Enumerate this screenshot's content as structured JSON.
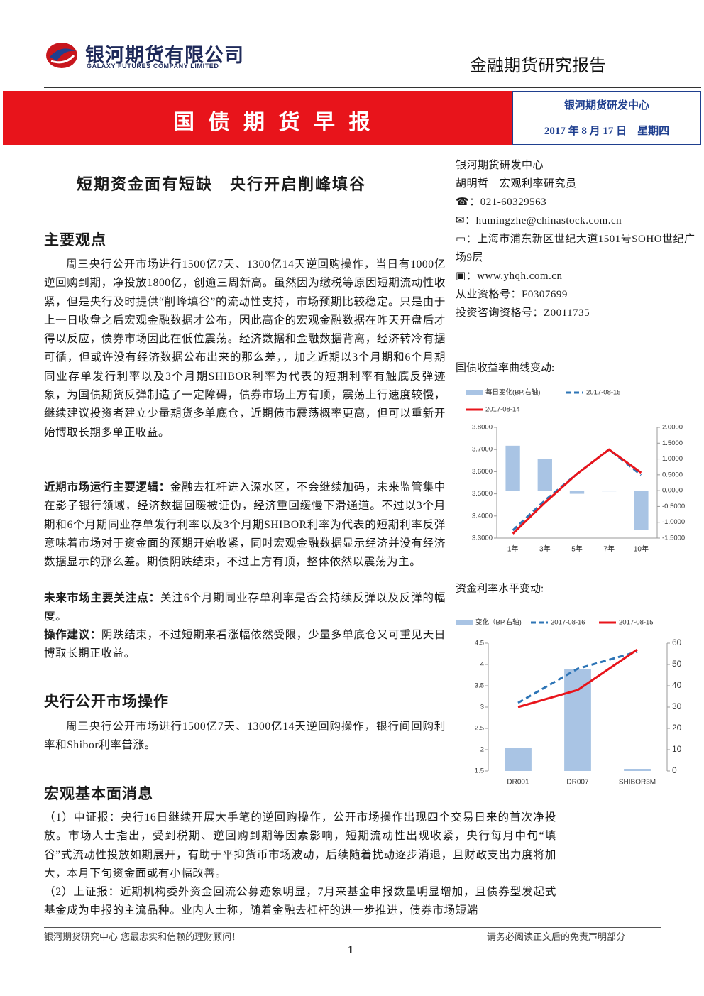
{
  "header": {
    "company": "银河期货有限公司",
    "company_en": "GALAXY FUTURES COMPANY LIMITED",
    "report_type": "金融期货研究报告",
    "banner": "国 债 期 货 早 报",
    "center": "银河期货研发中心",
    "date": "2017 年 8 月 17 日　星期四"
  },
  "title": "短期资金面有短缺　央行开启削峰填谷",
  "sidebar": {
    "org": "银河期货研发中心",
    "author": "胡明哲　宏观利率研究员",
    "phone": "：021-60329563",
    "email": "：humingzhe@chinastock.com.cn",
    "address": "：上海市浦东新区世纪大道1501号SOHO世纪广场9层",
    "web": "：www.yhqh.com.cn",
    "license": "从业资格号：F0307699",
    "consult": "投资咨询资格号：Z0011735"
  },
  "sections": [
    {
      "heading": "主要观点",
      "paragraphs": [
        "周三央行公开市场进行1500亿7天、1300亿14天逆回购操作，当日有1000亿逆回购到期，净投放1800亿，创逾三周新高。虽然因为缴税等原因短期流动性收紧，但是央行及时提供“削峰填谷”的流动性支持，市场预期比较稳定。只是由于上一日收盘之后宏观金融数据才公布，因此高企的宏观金融数据在昨天开盘后才得以反应，债券市场因此在低位震荡。经济数据和金融数据背离，经济转冷有据可循，但或许没有经济数据公布出来的那么差，，加之近期以3个月期和6个月期同业存单发行利率以及3个月期SHIBOR利率为代表的短期利率有触底反弹迹象，为国债期货反弹制造了一定障碍，债券市场上方有顶，震荡上行速度较慢，继续建议投资者建立少量期货多单底仓，近期债市震荡概率更高，但可以重新开始博取长期多单正收益。"
      ],
      "points": [
        {
          "label": "近期市场运行主要逻辑：",
          "text": "金融去杠杆进入深水区，不会继续加码，未来监管集中在影子银行领域，经济数据回暖被证伪，经济重回缓慢下滑通道。不过以3个月期和6个月期同业存单发行利率以及3个月期SHIBOR利率为代表的短期利率反弹意味着市场对于资金面的预期开始收紧，同时宏观金融数据显示经济并没有经济数据显示的那么差。期债阴跌结束，不过上方有顶，整体依然以震荡为主。"
        },
        {
          "label": "未来市场主要关注点：",
          "text": "关注6个月期同业存单利率是否会持续反弹以及反弹的幅度。"
        },
        {
          "label": "操作建议：",
          "text": "阴跌结束，不过短期来看涨幅依然受限，少量多单底仓又可重见天日博取长期正收益。"
        }
      ]
    },
    {
      "heading": "央行公开市场操作",
      "paragraphs": [
        "周三央行公开市场进行1500亿7天、1300亿14天逆回购操作，银行间回购利率和Shibor利率普涨。"
      ]
    },
    {
      "heading": "宏观基本面消息",
      "paragraphs": [
        "（1）中证报：央行16日继续开展大手笔的逆回购操作，公开市场操作出现四个交易日来的首次净投放。市场人士指出，受到税期、逆回购到期等因素影响，短期流动性出现收紧，央行每月中旬“填谷”式流动性投放如期展开，有助于平抑货币市场波动，后续随着扰动逐步消退，且财政支出力度将加大，本月下旬资金面或有小幅改善。",
        "（2）上证报：近期机构委外资金回流公募迹象明显，7月来基金申报数量明显增加，且债券型发起式基金成为申报的主流品种。业内人士称，随着金融去杠杆的进一步推进，债券市场短端"
      ]
    }
  ],
  "footer": {
    "left": "银河期货研究中心  您最忠实和信赖的理财顾问！",
    "right": "请务必阅读正文后的免责声明部分",
    "page": "1"
  },
  "chart_data": [
    {
      "type": "combo",
      "title": "国债收益率曲线变动:",
      "categories": [
        "1年",
        "3年",
        "5年",
        "7年",
        "10年"
      ],
      "series": [
        {
          "name": "每日变化(BP,右轴)",
          "type": "bar",
          "axis": "y2",
          "color": "#a9c4e4",
          "values": [
            1.42,
            1.0,
            -0.1,
            -0.02,
            -1.25
          ]
        },
        {
          "name": "2017-08-15",
          "type": "line",
          "dashed": true,
          "color": "#2e75b6",
          "values": [
            3.335,
            3.47,
            3.59,
            3.7,
            3.585
          ]
        },
        {
          "name": "2017-08-14",
          "type": "line",
          "color": "#e8141b",
          "values": [
            3.32,
            3.46,
            3.59,
            3.7,
            3.595
          ]
        }
      ],
      "ylim": [
        3.3,
        3.8
      ],
      "yticks": [
        {
          "value": 3.3,
          "label": "3.3000"
        },
        {
          "value": 3.4,
          "label": "3.4000"
        },
        {
          "value": 3.5,
          "label": "3.5000"
        },
        {
          "value": 3.6,
          "label": "3.6000"
        },
        {
          "value": 3.7,
          "label": "3.7000"
        },
        {
          "value": 3.8,
          "label": "3.8000"
        }
      ],
      "y2lim": [
        -1.5,
        2.0
      ],
      "y2ticks": [
        {
          "value": -1.5,
          "label": "-1.5000"
        },
        {
          "value": -1,
          "label": "-1.0000"
        },
        {
          "value": -0.5,
          "label": "-0.5000"
        },
        {
          "value": 0,
          "label": "0.0000"
        },
        {
          "value": 0.5,
          "label": "0.5000"
        },
        {
          "value": 1,
          "label": "1.0000"
        },
        {
          "value": 1.5,
          "label": "1.5000"
        },
        {
          "value": 2,
          "label": "2.0000"
        }
      ]
    },
    {
      "type": "combo",
      "title": "资金利率水平变动:",
      "categories": [
        "DR001",
        "DR007",
        "SHIBOR3M"
      ],
      "series": [
        {
          "name": "变化（BP,右轴)",
          "type": "bar",
          "axis": "y2",
          "color": "#a9c4e4",
          "values": [
            11,
            48,
            1
          ]
        },
        {
          "name": "2017-08-16",
          "type": "line",
          "dashed": true,
          "color": "#2e75b6",
          "values": [
            3.1,
            3.9,
            4.3
          ]
        },
        {
          "name": "2017-08-15",
          "type": "line",
          "color": "#e8141b",
          "values": [
            3.0,
            3.4,
            4.35
          ]
        }
      ],
      "ylim": [
        1.5,
        4.5
      ],
      "yticks": [
        1.5,
        2,
        2.5,
        3,
        3.5,
        4,
        4.5
      ],
      "y2lim": [
        0,
        60
      ],
      "y2ticks": [
        0,
        10,
        20,
        30,
        40,
        50,
        60
      ]
    }
  ]
}
